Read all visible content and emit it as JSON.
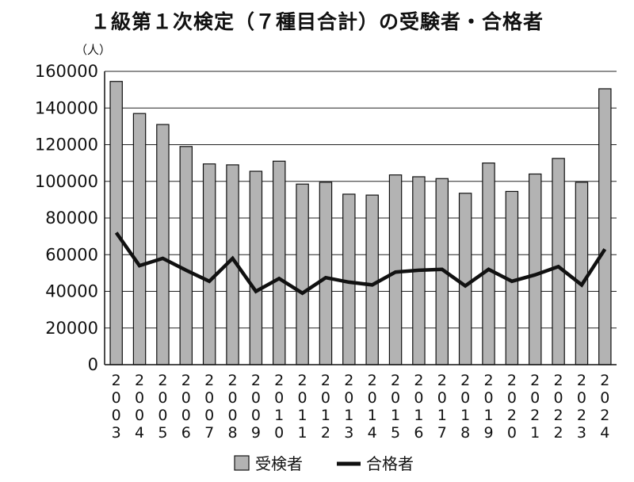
{
  "chart_data": {
    "type": "bar",
    "title": "１級第１次検定（７種目合計）の受験者・合格者",
    "yunit": "（人）",
    "ylim": [
      0,
      160000
    ],
    "yticks": [
      0,
      20000,
      40000,
      60000,
      80000,
      100000,
      120000,
      140000,
      160000
    ],
    "grid": true,
    "legend_position": "bottom",
    "categories": [
      "2003",
      "2004",
      "2005",
      "2006",
      "2007",
      "2008",
      "2009",
      "2010",
      "2011",
      "2012",
      "2013",
      "2014",
      "2015",
      "2016",
      "2017",
      "2018",
      "2019",
      "2020",
      "2021",
      "2022",
      "2023",
      "2024"
    ],
    "series": [
      {
        "name": "受検者",
        "kind": "bar",
        "color": "#b3b3b3",
        "values": [
          154500,
          137000,
          131000,
          119000,
          109500,
          109000,
          105500,
          111000,
          98500,
          99500,
          93000,
          92500,
          103500,
          102500,
          101500,
          93500,
          110000,
          94500,
          104000,
          112500,
          99500,
          150500
        ]
      },
      {
        "name": "合格者",
        "kind": "line",
        "color": "#111111",
        "values": [
          72000,
          54000,
          58000,
          51500,
          45500,
          58000,
          40000,
          47000,
          39000,
          47500,
          45000,
          43500,
          50500,
          51500,
          52000,
          43000,
          52000,
          45500,
          49000,
          53500,
          43500,
          63000
        ]
      }
    ]
  }
}
